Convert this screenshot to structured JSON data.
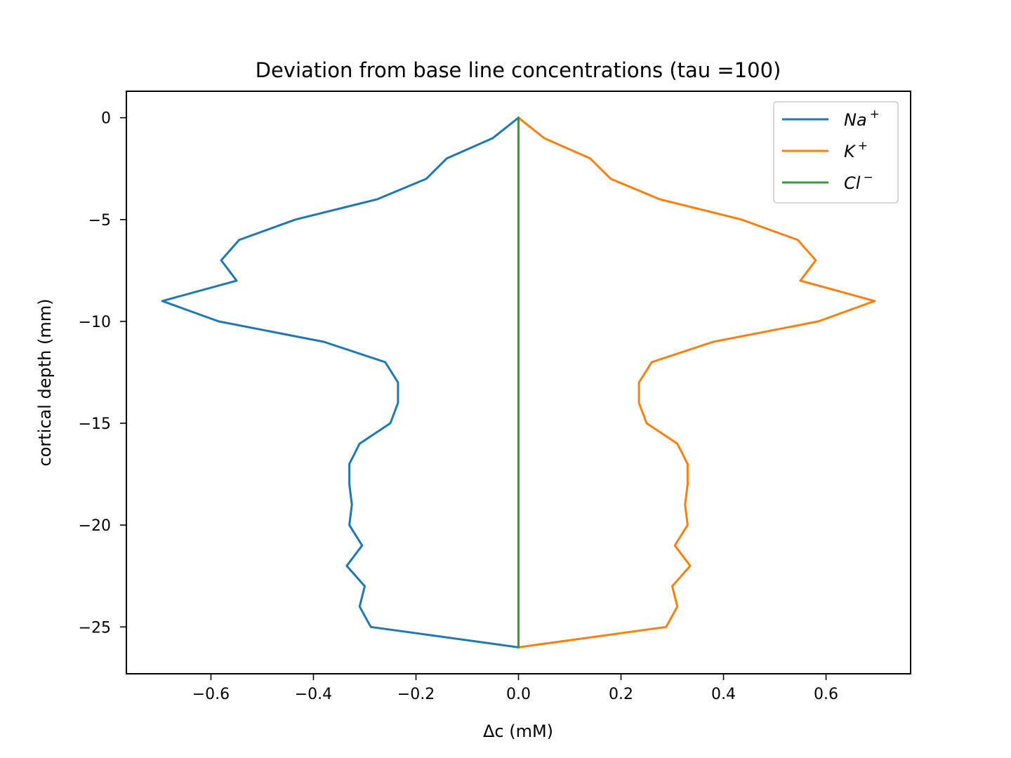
{
  "chart_data": {
    "type": "line",
    "title": "Deviation from base line concentrations (tau =100)",
    "xlabel": "Δc (mM)",
    "ylabel": "cortical depth (mm)",
    "xlim": [
      -0.765,
      0.765
    ],
    "ylim": [
      -27.3,
      1.3
    ],
    "xticks": [
      -0.6,
      -0.4,
      -0.2,
      0.0,
      0.2,
      0.4,
      0.6
    ],
    "xtick_labels": [
      "−0.6",
      "−0.4",
      "−0.2",
      "0.0",
      "0.2",
      "0.4",
      "0.6"
    ],
    "yticks": [
      0,
      -5,
      -10,
      -15,
      -20,
      -25
    ],
    "ytick_labels": [
      "0",
      "−5",
      "−10",
      "−15",
      "−20",
      "−25"
    ],
    "grid": false,
    "legend_position": "top-right",
    "depth": [
      0,
      -1,
      -2,
      -3,
      -4,
      -5,
      -6,
      -7,
      -8,
      -9,
      -10,
      -11,
      -12,
      -13,
      -14,
      -15,
      -16,
      -17,
      -18,
      -19,
      -20,
      -21,
      -22,
      -23,
      -24,
      -25,
      -26
    ],
    "series": [
      {
        "name_base": "Na",
        "name_sup": "+",
        "color": "#1f77b4",
        "x": [
          0,
          -0.05,
          -0.14,
          -0.18,
          -0.275,
          -0.435,
          -0.545,
          -0.58,
          -0.55,
          -0.695,
          -0.585,
          -0.38,
          -0.26,
          -0.235,
          -0.235,
          -0.25,
          -0.31,
          -0.33,
          -0.33,
          -0.325,
          -0.33,
          -0.305,
          -0.335,
          -0.3,
          -0.31,
          -0.288,
          0
        ]
      },
      {
        "name_base": "K",
        "name_sup": "+",
        "color": "#ff7f0e",
        "x": [
          0,
          0.05,
          0.14,
          0.18,
          0.275,
          0.435,
          0.545,
          0.58,
          0.55,
          0.695,
          0.585,
          0.38,
          0.26,
          0.235,
          0.235,
          0.25,
          0.31,
          0.33,
          0.33,
          0.325,
          0.33,
          0.305,
          0.335,
          0.3,
          0.31,
          0.288,
          0
        ]
      },
      {
        "name_base": "Cl",
        "name_sup": "−",
        "color": "#2ca02c",
        "x": [
          0,
          0,
          0,
          0,
          0,
          0,
          0,
          0,
          0,
          0,
          0,
          0,
          0,
          0,
          0,
          0,
          0,
          0,
          0,
          0,
          0,
          0,
          0,
          0,
          0,
          0,
          0
        ]
      }
    ]
  }
}
